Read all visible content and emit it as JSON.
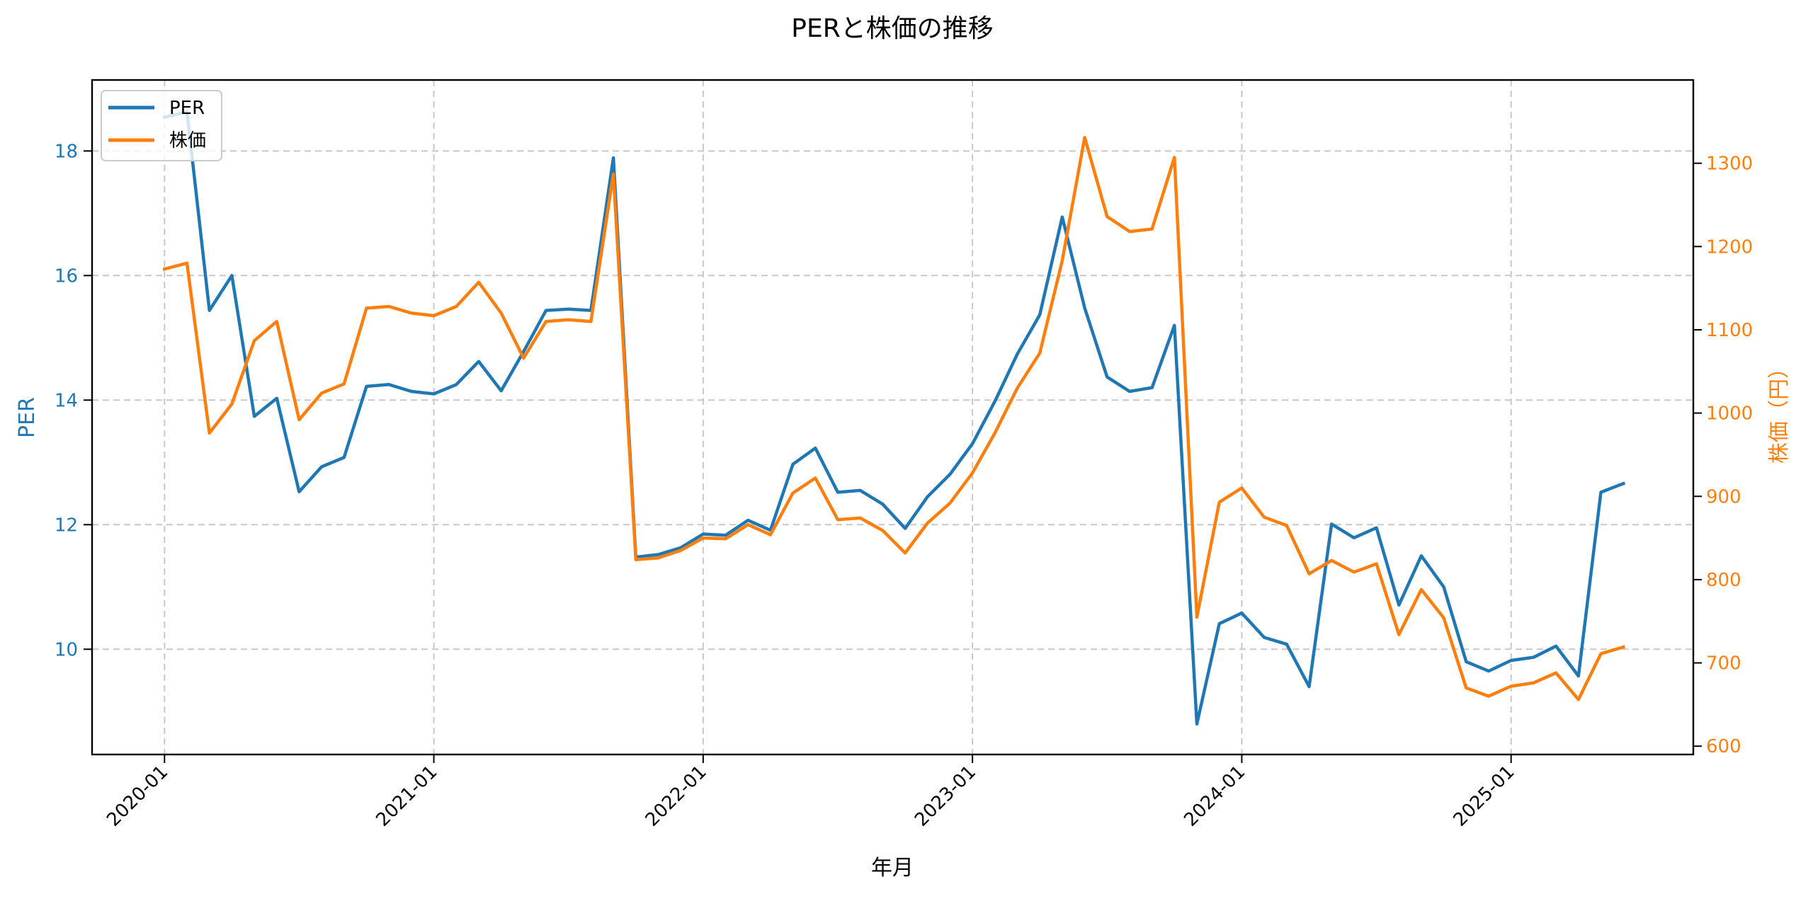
{
  "figure": {
    "title": "PERと株価の推移",
    "background": "#ffffff"
  },
  "axes": {
    "xlabel": "年月",
    "ylabel_left": "PER",
    "ylabel_right": "株価（円）",
    "left_color": "#1f77b4",
    "right_color": "#ff7f0e",
    "grid_color": "#c8c8c8"
  },
  "legend": {
    "position": "upper left",
    "items": [
      {
        "label": "PER",
        "color": "#1f77b4"
      },
      {
        "label": "株価",
        "color": "#ff7f0e"
      }
    ]
  },
  "chart_data": {
    "type": "line",
    "title": "PERと株価の推移",
    "xlabel": "年月",
    "ylabel": "PER",
    "ylabel_secondary": "株価（円）",
    "grid": true,
    "legend_position": "upper left",
    "x_tick_labels": [
      "2020-01",
      "2021-01",
      "2022-01",
      "2023-01",
      "2024-01",
      "2025-01"
    ],
    "x_tick_months": [
      0,
      12,
      24,
      36,
      48,
      60
    ],
    "ylim": [
      8.31,
      19.14
    ],
    "yticks": [
      10,
      12,
      14,
      16,
      18
    ],
    "ylim_secondary": [
      590,
      1400
    ],
    "yticks_secondary": [
      600,
      700,
      800,
      900,
      1000,
      1100,
      1200,
      1300
    ],
    "x": [
      "2020-01",
      "2020-02",
      "2020-03",
      "2020-04",
      "2020-05",
      "2020-06",
      "2020-07",
      "2020-08",
      "2020-09",
      "2020-10",
      "2020-11",
      "2020-12",
      "2021-01",
      "2021-02",
      "2021-03",
      "2021-04",
      "2021-05",
      "2021-06",
      "2021-07",
      "2021-08",
      "2021-09",
      "2021-10",
      "2021-11",
      "2021-12",
      "2022-01",
      "2022-02",
      "2022-03",
      "2022-04",
      "2022-05",
      "2022-06",
      "2022-07",
      "2022-08",
      "2022-09",
      "2022-10",
      "2022-11",
      "2022-12",
      "2023-01",
      "2023-02",
      "2023-03",
      "2023-04",
      "2023-05",
      "2023-06",
      "2023-07",
      "2023-08",
      "2023-09",
      "2023-10",
      "2023-11",
      "2023-12",
      "2024-01",
      "2024-02",
      "2024-03",
      "2024-04",
      "2024-05",
      "2024-06",
      "2024-07",
      "2024-08",
      "2024-09",
      "2024-10",
      "2024-11",
      "2024-12",
      "2025-01",
      "2025-02",
      "2025-03",
      "2025-04",
      "2025-05",
      "2025-06"
    ],
    "series": [
      {
        "name": "PER",
        "axis": "left",
        "color": "#1f77b4",
        "values": [
          18.54,
          18.63,
          15.44,
          16.0,
          13.74,
          14.03,
          12.53,
          12.93,
          13.08,
          14.22,
          14.25,
          14.14,
          14.1,
          14.25,
          14.62,
          14.15,
          14.78,
          15.44,
          15.46,
          15.44,
          17.89,
          11.48,
          11.52,
          11.63,
          11.85,
          11.83,
          12.07,
          11.91,
          12.97,
          13.23,
          12.52,
          12.55,
          12.33,
          11.94,
          12.45,
          12.81,
          13.3,
          13.98,
          14.74,
          15.37,
          16.94,
          15.48,
          14.37,
          14.14,
          14.2,
          15.2,
          8.8,
          10.41,
          10.58,
          10.19,
          10.08,
          9.4,
          12.01,
          11.79,
          11.95,
          10.71,
          11.5,
          11.0,
          9.8,
          9.65,
          9.82,
          9.87,
          10.05,
          9.57,
          12.52,
          12.66
        ]
      },
      {
        "name": "株価",
        "axis": "right",
        "color": "#ff7f0e",
        "values": [
          1173,
          1180,
          976,
          1011,
          1087,
          1110,
          992,
          1024,
          1035,
          1126,
          1128,
          1120,
          1117,
          1128,
          1157,
          1120,
          1066,
          1110,
          1112,
          1110,
          1287,
          824,
          826,
          835,
          850,
          849,
          866,
          854,
          904,
          922,
          872,
          874,
          859,
          832,
          868,
          892,
          928,
          976,
          1030,
          1072,
          1183,
          1331,
          1236,
          1218,
          1221,
          1307,
          755,
          893,
          910,
          875,
          865,
          807,
          823,
          809,
          819,
          734,
          788,
          754,
          670,
          660,
          672,
          676,
          688,
          656,
          711,
          719
        ]
      }
    ]
  }
}
